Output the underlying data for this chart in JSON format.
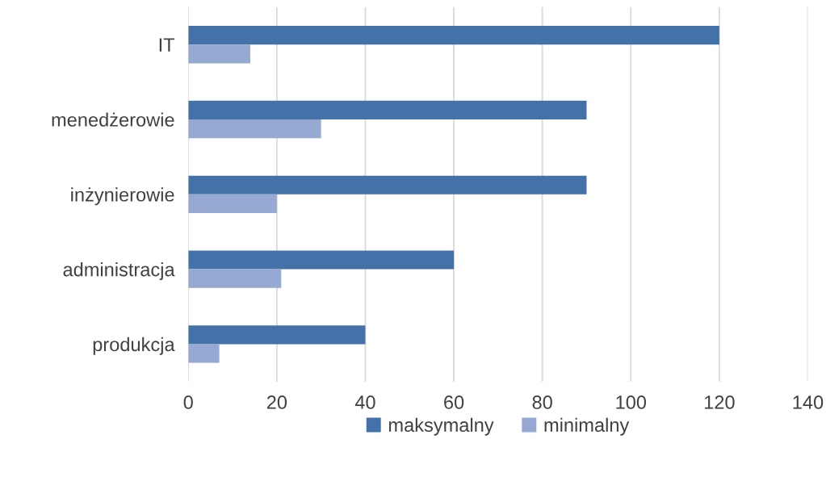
{
  "chart_data": {
    "type": "bar",
    "orientation": "horizontal",
    "categories": [
      "IT",
      "menedżerowie",
      "inżynierowie",
      "administracja",
      "produkcja"
    ],
    "series": [
      {
        "name": "maksymalny",
        "color": "#4472a8",
        "values": [
          120,
          90,
          90,
          60,
          40
        ]
      },
      {
        "name": "minimalny",
        "color": "#95a9d3",
        "values": [
          14,
          30,
          20,
          21,
          7
        ]
      }
    ],
    "xlim": [
      0,
      140
    ],
    "xticks": [
      0,
      20,
      40,
      60,
      80,
      100,
      120,
      140
    ],
    "grid": "x",
    "legend": "bottom"
  }
}
